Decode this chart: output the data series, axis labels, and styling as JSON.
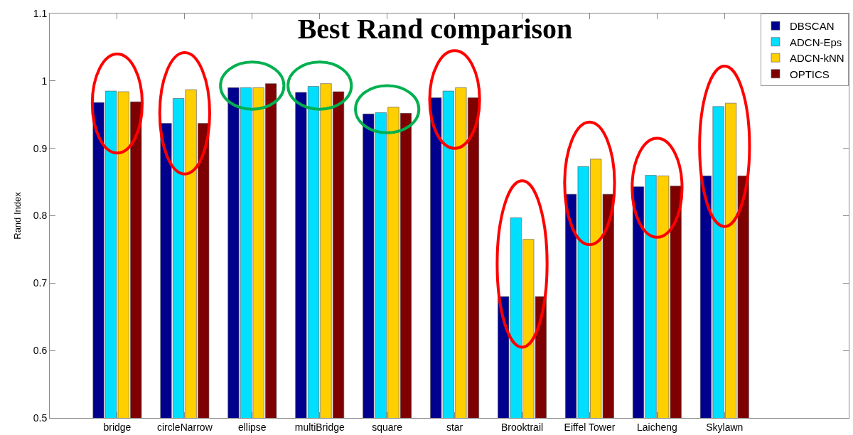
{
  "chart_data": {
    "type": "bar",
    "title": "Best Rand comparison",
    "ylabel": "Rand Index",
    "categories": [
      "bridge",
      "circleNarrow",
      "ellipse",
      "multiBridge",
      "square",
      "star",
      "Brooktrail",
      "Eiffel Tower",
      "Laicheng",
      "Skylawn"
    ],
    "series": [
      {
        "name": "DBSCAN",
        "color": "#00008f",
        "values": [
          0.968,
          0.937,
          0.99,
          0.983,
          0.951,
          0.975,
          0.68,
          0.832,
          0.843,
          0.859
        ]
      },
      {
        "name": "ADCN-Eps",
        "color": "#00dfff",
        "values": [
          0.985,
          0.974,
          0.99,
          0.992,
          0.953,
          0.985,
          0.797,
          0.873,
          0.86,
          0.962
        ]
      },
      {
        "name": "ADCN-kNN",
        "color": "#ffcf00",
        "values": [
          0.984,
          0.987,
          0.99,
          0.996,
          0.961,
          0.99,
          0.765,
          0.884,
          0.859,
          0.967
        ]
      },
      {
        "name": "OPTICS",
        "color": "#7f0000",
        "values": [
          0.969,
          0.937,
          0.996,
          0.984,
          0.952,
          0.975,
          0.68,
          0.832,
          0.844,
          0.859
        ]
      }
    ],
    "ylim": [
      0.5,
      1.1
    ],
    "yticks": [
      0.5,
      0.6,
      0.7,
      0.8,
      0.9,
      1,
      1.1
    ],
    "grid": false,
    "legend": "top right"
  }
}
